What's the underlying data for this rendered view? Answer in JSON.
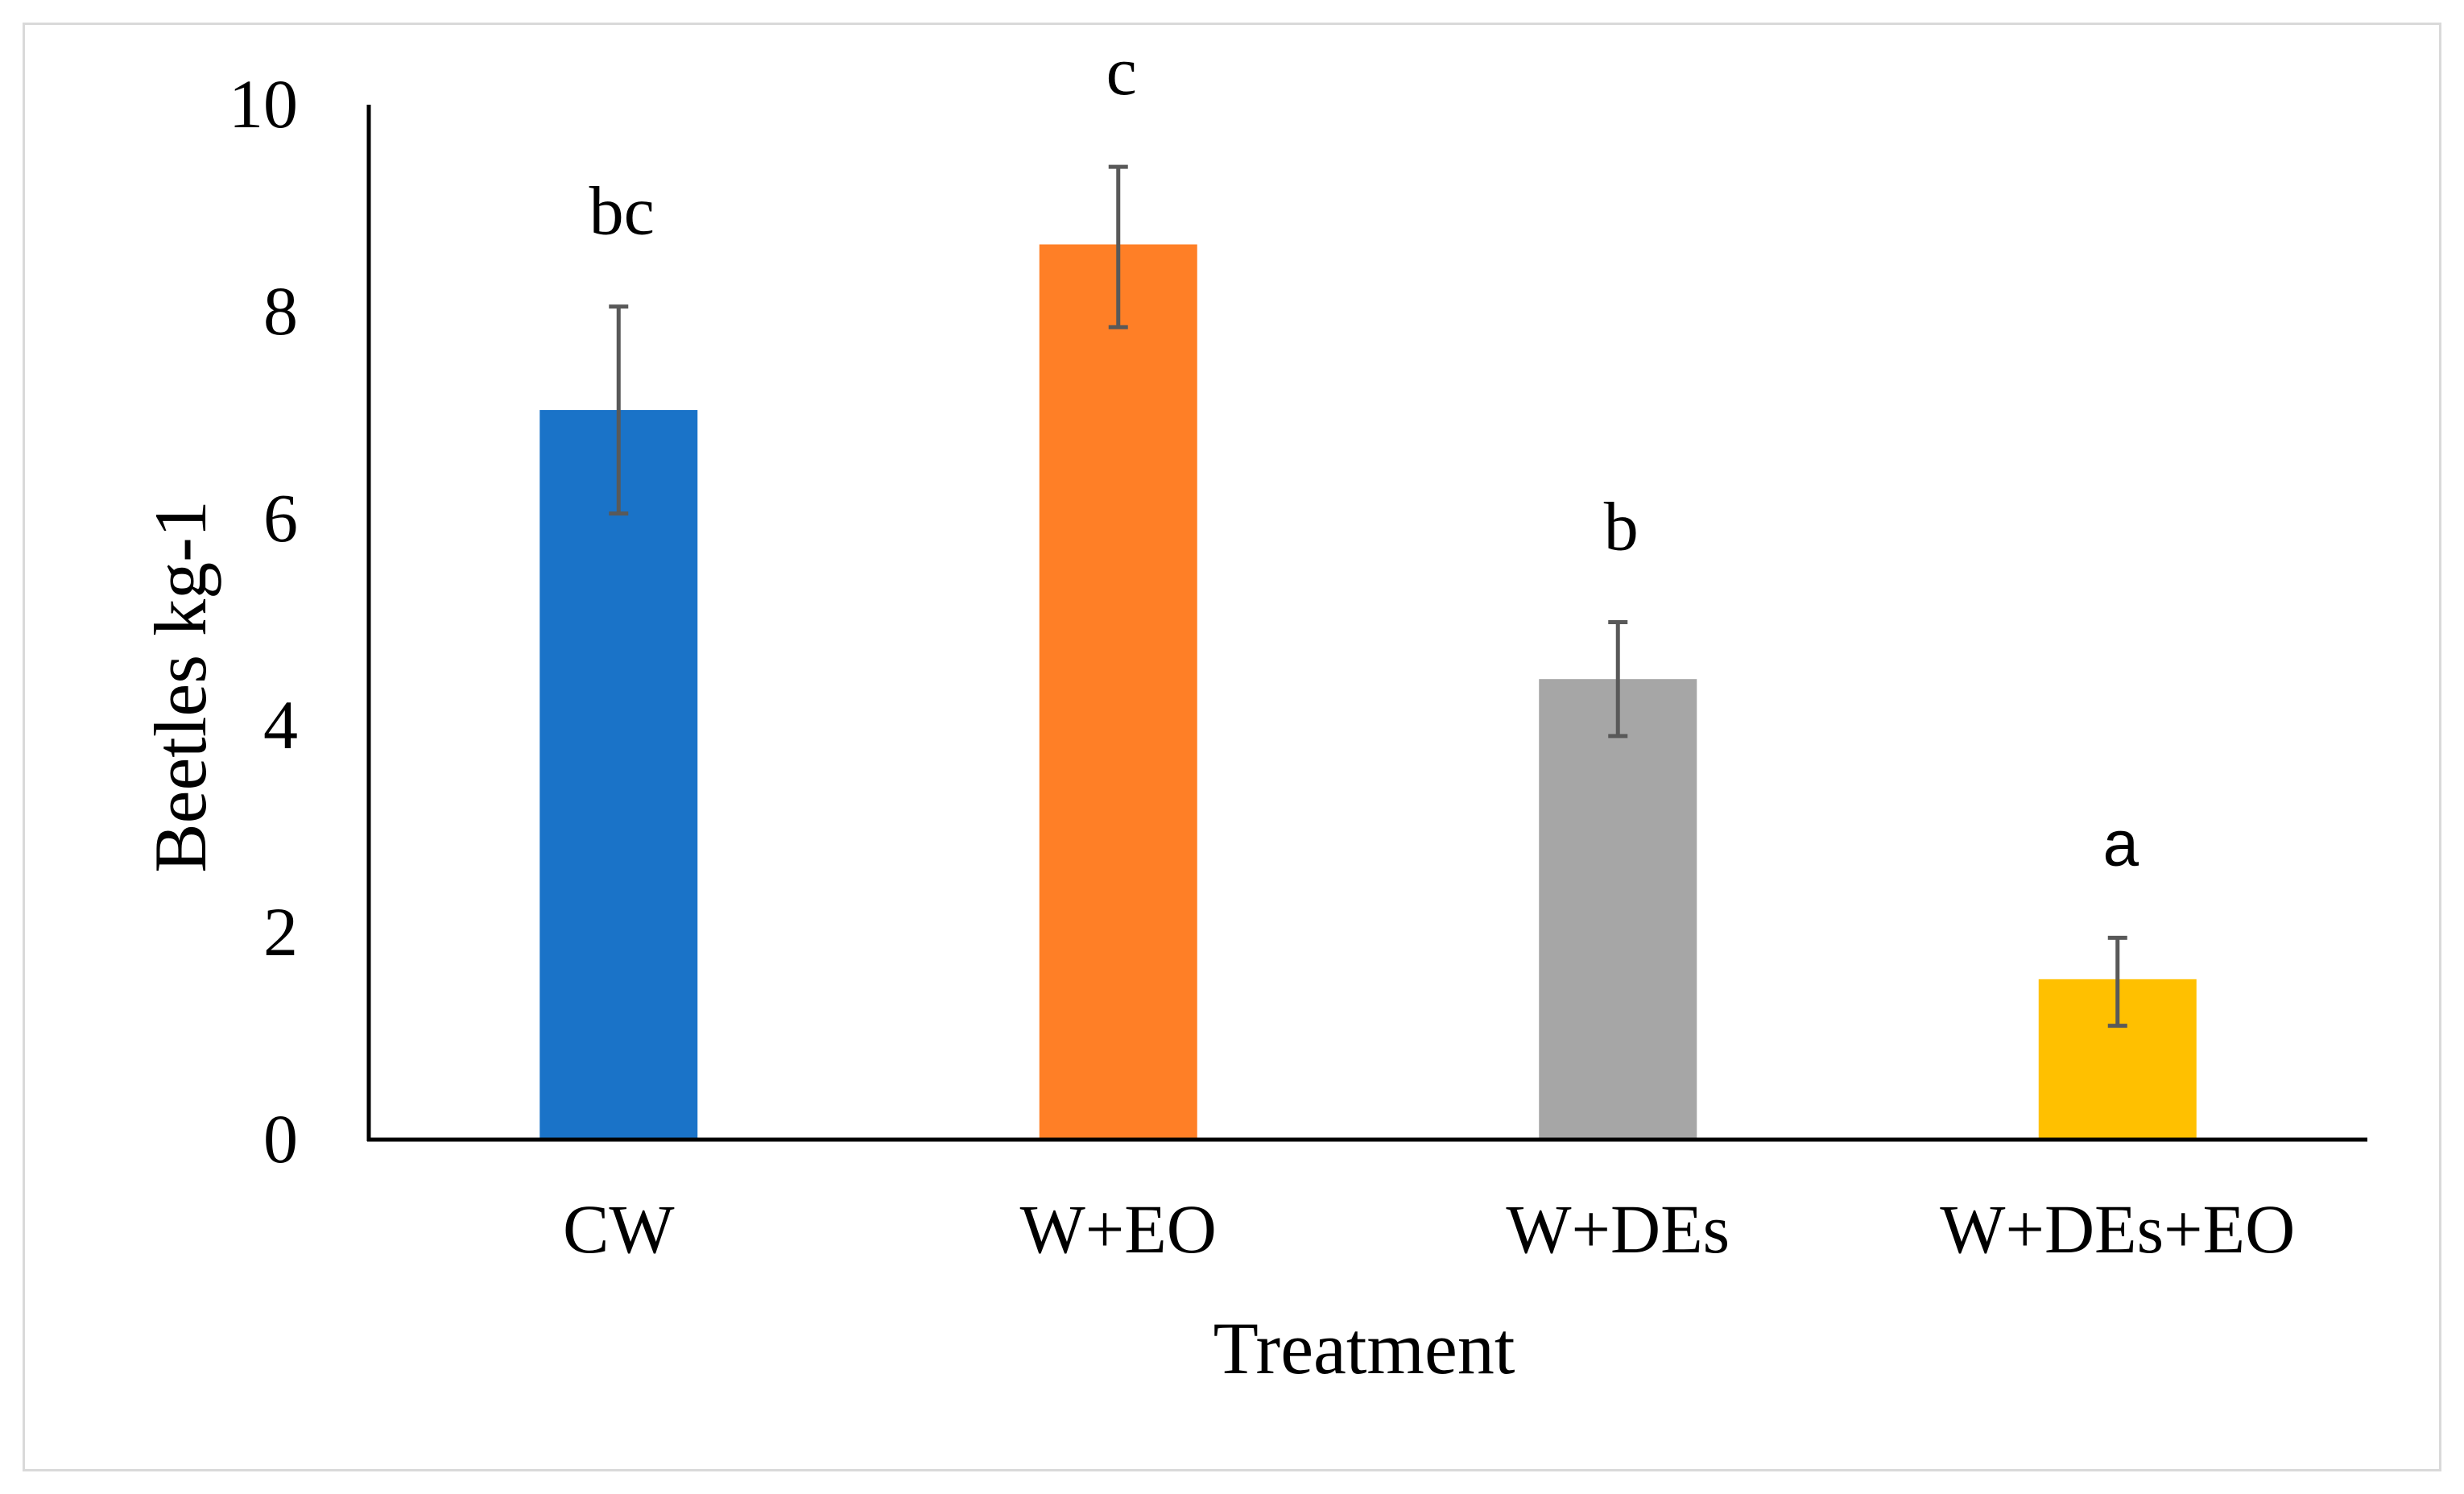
{
  "chart_data": {
    "type": "bar",
    "title": "",
    "xlabel": "Treatment",
    "ylabel": "Beetles kg-1",
    "ylim": [
      0,
      10
    ],
    "yticks": [
      0,
      2,
      4,
      6,
      8,
      10
    ],
    "grid": false,
    "legend": "none",
    "categories": [
      "CW",
      "W+EO",
      "W+DEs",
      "W+DEs+EO"
    ],
    "values": [
      7.05,
      8.65,
      4.45,
      1.55
    ],
    "error_low": [
      6.05,
      7.85,
      3.9,
      1.1
    ],
    "error_high": [
      8.05,
      9.4,
      5.0,
      1.95
    ],
    "significance": [
      "bc",
      "c",
      "b",
      "a"
    ],
    "colors": [
      "#1a73c8",
      "#ff7f26",
      "#a6a6a6",
      "#ffc000"
    ],
    "error_bar_color": "#595959",
    "axis_color": "#000000"
  }
}
